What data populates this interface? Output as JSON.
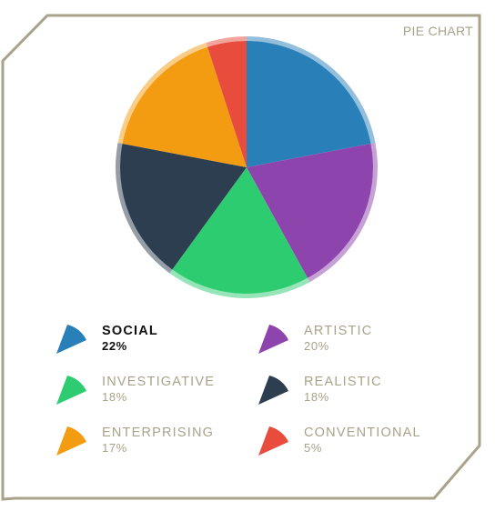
{
  "panel": {
    "title": "PIE CHART"
  },
  "colors": {
    "frame": "#a8a38a",
    "label": "#a8a38a",
    "active_label": "#111111"
  },
  "chart_data": {
    "type": "pie",
    "title": "",
    "active": "SOCIAL",
    "slices": [
      {
        "label": "SOCIAL",
        "value": 22,
        "display": "22%",
        "color": "#2980b9"
      },
      {
        "label": "ARTISTIC",
        "value": 20,
        "display": "20%",
        "color": "#8e44ad"
      },
      {
        "label": "INVESTIGATIVE",
        "value": 18,
        "display": "18%",
        "color": "#2ecc71"
      },
      {
        "label": "REALISTIC",
        "value": 18,
        "display": "18%",
        "color": "#2c3e50"
      },
      {
        "label": "ENTERPRISING",
        "value": 17,
        "display": "17%",
        "color": "#f39c12"
      },
      {
        "label": "CONVENTIONAL",
        "value": 5,
        "display": "5%",
        "color": "#e74c3c"
      }
    ],
    "legend_order": [
      "SOCIAL",
      "ARTISTIC",
      "INVESTIGATIVE",
      "REALISTIC",
      "ENTERPRISING",
      "CONVENTIONAL"
    ]
  }
}
